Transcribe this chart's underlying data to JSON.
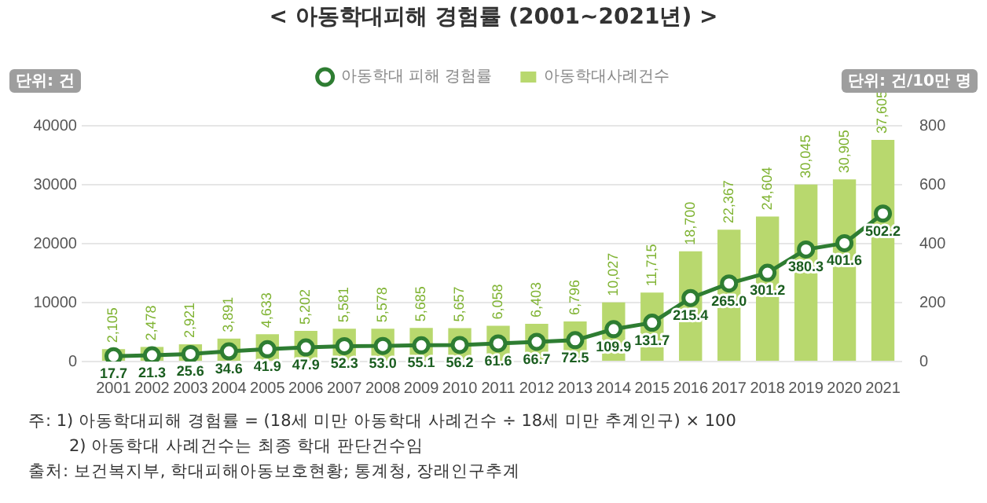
{
  "chart_data": {
    "type": "bar",
    "title": "< 아동학대피해 경험률 (2001~2021년) >",
    "categories": [
      "2001",
      "2002",
      "2003",
      "2004",
      "2005",
      "2006",
      "2007",
      "2008",
      "2009",
      "2010",
      "2011",
      "2012",
      "2013",
      "2014",
      "2015",
      "2016",
      "2017",
      "2018",
      "2019",
      "2020",
      "2021"
    ],
    "series": [
      {
        "name": "아동학대 피해 경험률",
        "type": "line",
        "axis": "y2",
        "color": "#2e7d32",
        "marker": "circle",
        "values": [
          17.7,
          21.3,
          25.6,
          34.6,
          41.9,
          47.9,
          52.3,
          53.0,
          55.1,
          56.2,
          61.6,
          66.7,
          72.5,
          109.9,
          131.7,
          215.4,
          265.0,
          301.2,
          380.3,
          401.6,
          502.2
        ],
        "value_labels": [
          "17.7",
          "21.3",
          "25.6",
          "34.6",
          "41.9",
          "47.9",
          "52.3",
          "53.0",
          "55.1",
          "56.2",
          "61.6",
          "66.7",
          "72.5",
          "109.9",
          "131.7",
          "215.4",
          "265.0",
          "301.2",
          "380.3",
          "401.6",
          "502.2"
        ]
      },
      {
        "name": "아동학대사례건수",
        "color": "#b8d86e",
        "values": [
          2105,
          2478,
          2921,
          3891,
          4633,
          5202,
          5581,
          5578,
          5685,
          5657,
          6058,
          6403,
          6796,
          10027,
          11715,
          18700,
          22367,
          24604,
          30045,
          30905,
          37605
        ],
        "value_labels": [
          "2,105",
          "2,478",
          "2,921",
          "3,891",
          "4,633",
          "5,202",
          "5,581",
          "5,578",
          "5,685",
          "5,657",
          "6,058",
          "6,403",
          "6,796",
          "10,027",
          "11,715",
          "18,700",
          "22,367",
          "24,604",
          "30,045",
          "30,905",
          "37,605"
        ]
      }
    ],
    "ylabel": "단위: 건",
    "y2label": "단위: 건/10만 명",
    "ylim": [
      0,
      40000
    ],
    "yticks": [
      0,
      10000,
      20000,
      30000,
      40000
    ],
    "y2lim": [
      0,
      800
    ],
    "y2ticks": [
      0,
      200,
      400,
      600,
      800
    ],
    "grid": "y",
    "legend": "top",
    "annotations": [
      "주: 1) 아동학대피해 경험률 = (18세 미만 아동학대 사례건수 ÷ 18세 미만 추계인구) × 100",
      "2) 아동학대 사례건수는 최종 학대 판단건수임",
      "출처: 보건복지부, 학대피해아동보호현황; 통계청, 장래인구추계"
    ]
  }
}
